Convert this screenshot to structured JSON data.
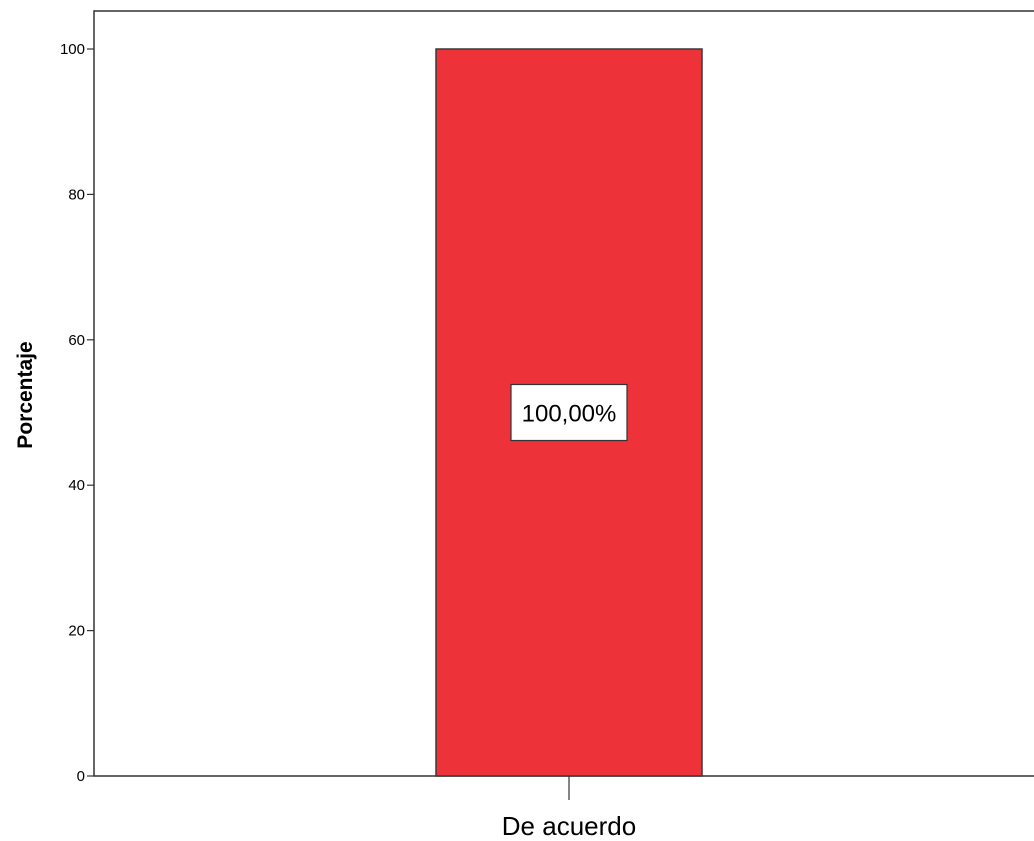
{
  "chart_data": {
    "type": "bar",
    "categories": [
      "De acuerdo"
    ],
    "values": [
      100
    ],
    "data_labels": [
      "100,00%"
    ],
    "title": "",
    "xlabel": "",
    "ylabel": "Porcentaje",
    "ylim": [
      0,
      100
    ],
    "yticks": [
      0,
      20,
      40,
      60,
      80,
      100
    ],
    "grid": false,
    "legend": "none",
    "bar_color": "#EE3239",
    "bar_edge_color": "#3a3a3a"
  }
}
